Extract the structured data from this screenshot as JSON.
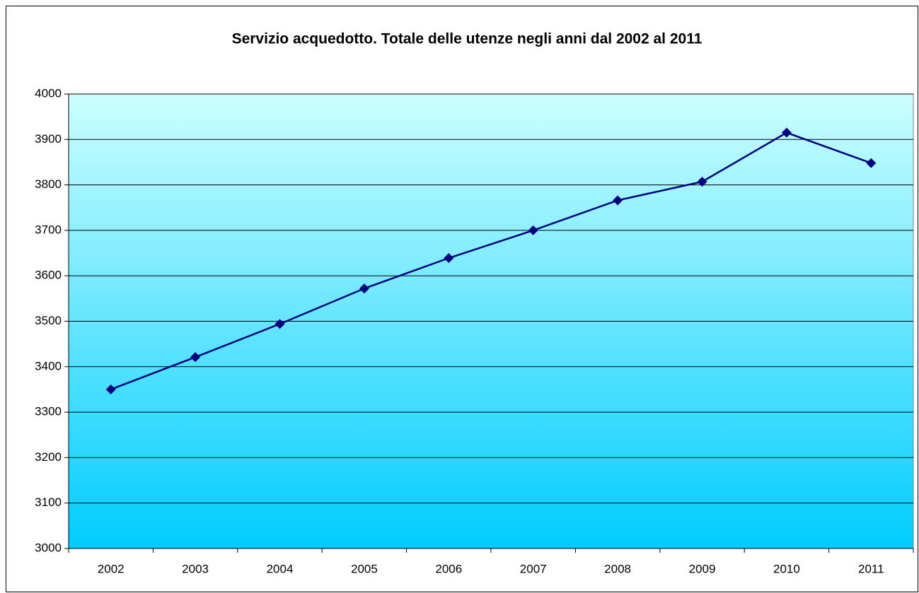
{
  "chart_data": {
    "type": "line",
    "title": "Servizio acquedotto. Totale delle utenze negli anni dal 2002 al 2011",
    "categories": [
      "2002",
      "2003",
      "2004",
      "2005",
      "2006",
      "2007",
      "2008",
      "2009",
      "2010",
      "2011"
    ],
    "series": [
      {
        "color": "#000080",
        "values": [
          3350,
          3421,
          3494,
          3572,
          3639,
          3700,
          3766,
          3807,
          3915,
          3848
        ]
      }
    ],
    "ylim": [
      3000,
      4000
    ],
    "yticks": [
      3000,
      3100,
      3200,
      3300,
      3400,
      3500,
      3600,
      3700,
      3800,
      3900,
      4000
    ],
    "grid": true
  }
}
